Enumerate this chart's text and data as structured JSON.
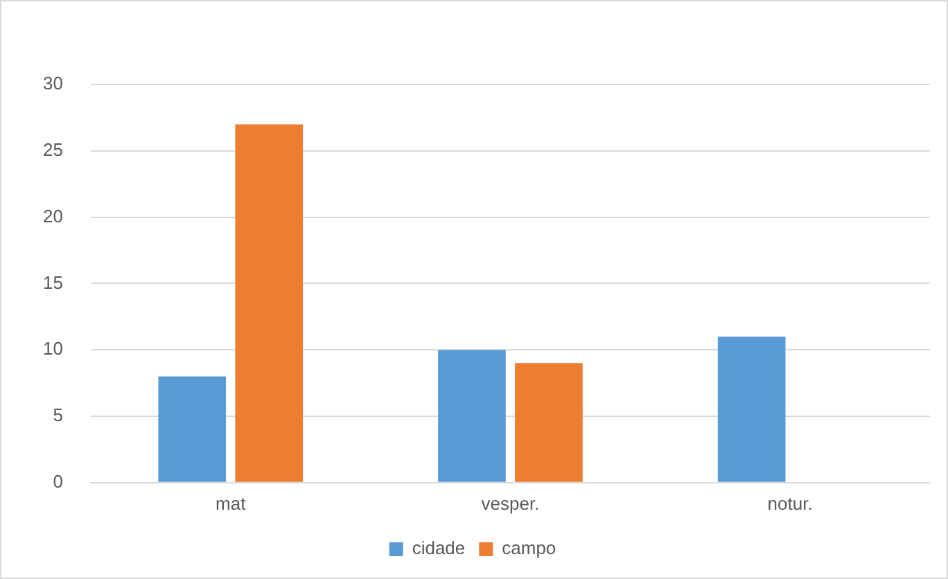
{
  "chart_data": {
    "type": "bar",
    "categories": [
      "mat",
      "vesper.",
      "notur."
    ],
    "series": [
      {
        "name": "cidade",
        "color": "#5b9bd5",
        "values": [
          8,
          10,
          11
        ]
      },
      {
        "name": "campo",
        "color": "#ed7d31",
        "values": [
          27,
          9,
          0
        ]
      }
    ],
    "ylim": [
      0,
      30
    ],
    "yticks": [
      0,
      5,
      10,
      15,
      20,
      25,
      30
    ],
    "grid": "y",
    "legend": "bottom"
  }
}
